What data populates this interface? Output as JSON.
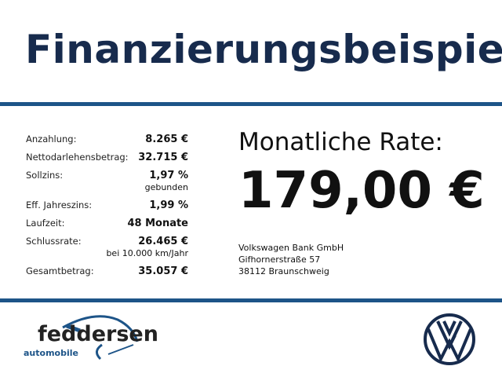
{
  "title": "Finanzierungsbeispiel",
  "rows": [
    {
      "label": "Anzahlung:",
      "value": "8.265 €"
    },
    {
      "label": "Nettodarlehensbetrag:",
      "value": "32.715 €"
    },
    {
      "label": "Sollzins:",
      "value": "1,97 %",
      "sub": "gebunden"
    },
    {
      "label": "Eff. Jahreszins:",
      "value": "1,99 %"
    },
    {
      "label": "Laufzeit:",
      "value": "48 Monate"
    },
    {
      "label": "Schlussrate:",
      "value": "26.465 €",
      "sub": "bei 10.000 km/Jahr"
    },
    {
      "label": "Gesamtbetrag:",
      "value": "35.057 €"
    }
  ],
  "rate": {
    "label": "Monatliche Rate:",
    "value": "179,00 €"
  },
  "bank": {
    "name": "Volkswagen Bank GmbH",
    "street": "Gifhornerstraße 57",
    "city": "38112 Braunschweig"
  },
  "logos": {
    "dealer": "feddersen",
    "dealer_sub": "automobile",
    "brand": "vw-logo"
  },
  "colors": {
    "title": "#172b4d",
    "accent": "#1d5488"
  }
}
